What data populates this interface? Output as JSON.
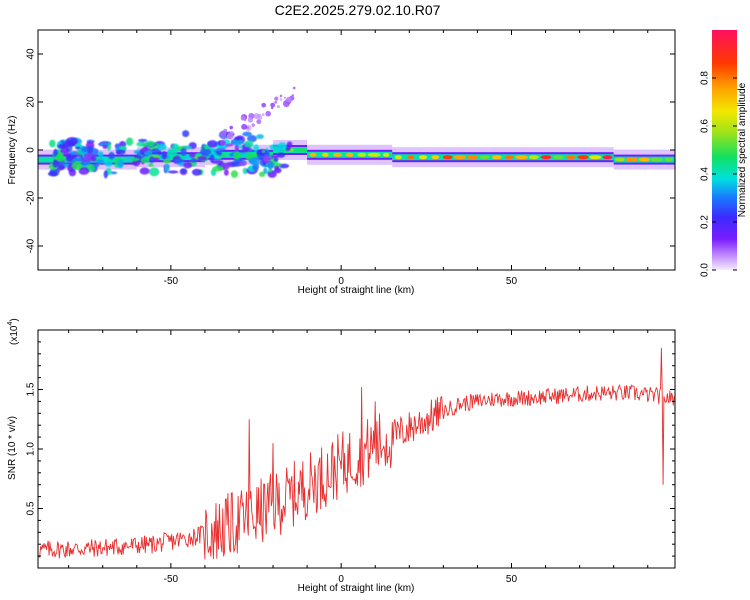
{
  "title": "C2E2.2025.279.02.10.R07",
  "chart_data": [
    {
      "type": "heatmap",
      "name": "spectrogram",
      "xlabel": "Height of straight line (km)",
      "ylabel": "Frequency (Hz)",
      "xlim": [
        -89,
        98
      ],
      "ylim": [
        -50,
        50
      ],
      "xticks": [
        -50,
        0,
        50
      ],
      "yticks": [
        -40,
        -20,
        0,
        20,
        40
      ],
      "colorbar": {
        "label": "Normalized spectral amplitude",
        "range": [
          0.0,
          1.0
        ],
        "ticks": [
          0.0,
          0.2,
          0.4,
          0.6,
          0.8
        ],
        "tick_labels": [
          "0.0",
          "0.2",
          "0.4",
          "0.6",
          "0.8"
        ]
      },
      "segments": [
        {
          "x": [
            -89,
            -60
          ],
          "freq": -4,
          "max_amp": 0.5
        },
        {
          "x": [
            -60,
            -40
          ],
          "freq": -3,
          "max_amp": 0.55
        },
        {
          "x": [
            -40,
            -20
          ],
          "freq": -2,
          "max_amp": 0.5
        },
        {
          "x": [
            -20,
            -10
          ],
          "freq": 0,
          "max_amp": 0.6
        },
        {
          "x": [
            -10,
            15
          ],
          "freq": -2,
          "max_amp": 0.85
        },
        {
          "x": [
            15,
            80
          ],
          "freq": -3,
          "max_amp": 0.95
        },
        {
          "x": [
            80,
            98
          ],
          "freq": -4,
          "max_amp": 0.9
        }
      ],
      "scatter_band": {
        "x": [
          -85,
          -15
        ],
        "freq_range": [
          -10,
          30
        ],
        "amp_range": [
          0.1,
          0.5
        ]
      }
    },
    {
      "type": "line",
      "name": "snr",
      "xlabel": "Height of straight line (km)",
      "ylabel": "SNR (10 * v/v)",
      "multiplier": "(x10^4)",
      "multiplier_base": "(x10",
      "multiplier_exp": "4",
      "xlim": [
        -89,
        98
      ],
      "ylim": [
        0,
        2.0
      ],
      "xticks": [
        -50,
        0,
        50
      ],
      "yticks": [
        0.5,
        1.0,
        1.5
      ],
      "ytick_labels": [
        "0.5",
        "1.0",
        "1.5"
      ],
      "color": "#e83030",
      "x_step": 0.25,
      "trend": [
        [
          -89,
          0.15
        ],
        [
          -70,
          0.17
        ],
        [
          -55,
          0.2
        ],
        [
          -45,
          0.25
        ],
        [
          -35,
          0.33
        ],
        [
          -25,
          0.45
        ],
        [
          -15,
          0.6
        ],
        [
          -5,
          0.78
        ],
        [
          5,
          0.95
        ],
        [
          15,
          1.1
        ],
        [
          25,
          1.25
        ],
        [
          35,
          1.38
        ],
        [
          45,
          1.42
        ],
        [
          55,
          1.43
        ],
        [
          65,
          1.45
        ],
        [
          75,
          1.47
        ],
        [
          85,
          1.47
        ],
        [
          92,
          1.45
        ],
        [
          98,
          1.42
        ]
      ],
      "spikes": [
        [
          -27,
          1.25
        ],
        [
          -20,
          1.05
        ],
        [
          6,
          1.52
        ],
        [
          10,
          1.4
        ],
        [
          94,
          1.85
        ],
        [
          94.6,
          0.7
        ]
      ]
    }
  ]
}
